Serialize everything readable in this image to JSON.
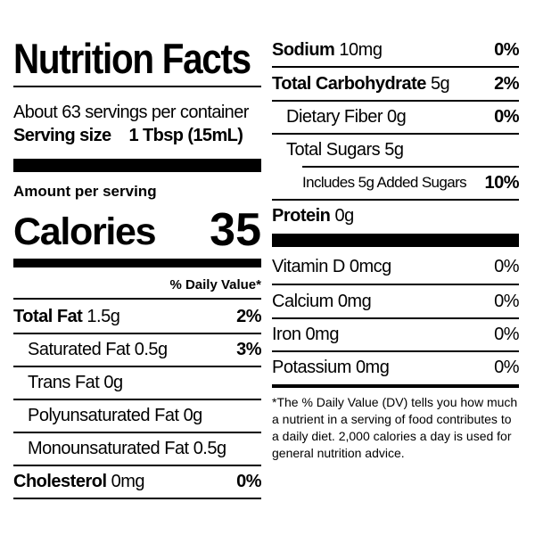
{
  "label": {
    "title": "Nutrition Facts",
    "servings_per_container": "About 63 servings per container",
    "serving_size_label": "Serving size",
    "serving_size_value": "1 Tbsp (15mL)",
    "amount_per_serving": "Amount per serving",
    "calories_label": "Calories",
    "calories_value": "35",
    "dv_header": "% Daily Value*"
  },
  "left_nutrients": [
    {
      "name": "Total Fat",
      "amount": "1.5g",
      "dv": "2%"
    },
    {
      "name": "Saturated Fat",
      "amount": "0.5g",
      "dv": "3%"
    },
    {
      "name": "Trans Fat",
      "amount": "0g",
      "dv": ""
    },
    {
      "name": "Polyunsaturated Fat",
      "amount": "0g",
      "dv": ""
    },
    {
      "name": "Monounsaturated Fat",
      "amount": "0.5g",
      "dv": ""
    },
    {
      "name": "Cholesterol",
      "amount": "0mg",
      "dv": "0%"
    }
  ],
  "right_nutrients": [
    {
      "name": "Sodium",
      "amount": "10mg",
      "dv": "0%"
    },
    {
      "name": "Total Carbohydrate",
      "amount": "5g",
      "dv": "2%"
    },
    {
      "name": "Dietary Fiber",
      "amount": "0g",
      "dv": "0%"
    },
    {
      "name": "Total Sugars",
      "amount": "5g",
      "dv": ""
    },
    {
      "name": "Includes 5g Added Sugars",
      "amount": "",
      "dv": "10%"
    },
    {
      "name": "Protein",
      "amount": "0g",
      "dv": ""
    }
  ],
  "vitamins": [
    {
      "name": "Vitamin D",
      "amount": "0mcg",
      "dv": "0%"
    },
    {
      "name": "Calcium",
      "amount": "0mg",
      "dv": "0%"
    },
    {
      "name": "Iron",
      "amount": "0mg",
      "dv": "0%"
    },
    {
      "name": "Potassium",
      "amount": "0mg",
      "dv": "0%"
    }
  ],
  "footnote": "*The % Daily Value (DV) tells you how much a nutrient in a serving of food contributes to a daily diet. 2,000 calories a day is used for general nutrition advice."
}
